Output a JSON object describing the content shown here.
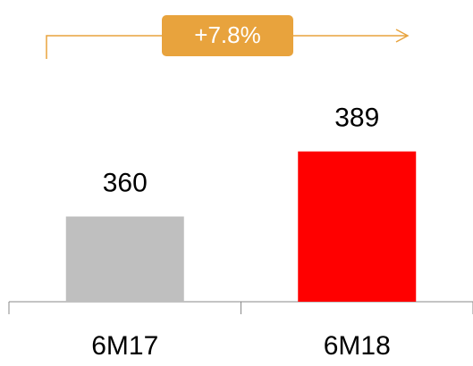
{
  "chart_data": {
    "type": "bar",
    "annotation": "+7.8%",
    "categories": [
      "6M17",
      "6M18"
    ],
    "values": [
      360,
      389
    ],
    "colors": [
      "#bfbfbf",
      "#ff0000"
    ],
    "ylim": [
      322,
      400
    ]
  }
}
